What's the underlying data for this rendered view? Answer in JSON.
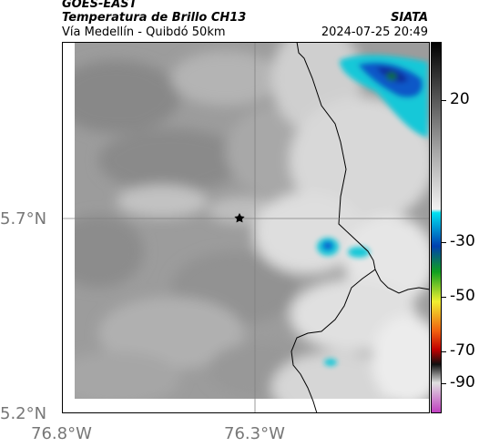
{
  "header": {
    "satellite": "GOES-EAST",
    "product": "Temperatura de Brillo CH13",
    "region": "Vía Medellín - Quibdó 50km",
    "organization": "SIATA",
    "datetime": "2024-07-25 20:49"
  },
  "map": {
    "lat_labels": [
      "5.7°N",
      "5.2°N"
    ],
    "lon_labels": [
      "76.8°W",
      "76.3°W"
    ],
    "marker": "star-marker"
  },
  "colorbar": {
    "tick_labels": [
      "20",
      "-30",
      "-50",
      "-70",
      "-90"
    ],
    "colors": {
      "warm_gray": "#a0a0a0",
      "cold_cyan": "#00d0e0",
      "cold_blue": "#0050c0",
      "green": "#20c020",
      "yellow": "#e0e020",
      "red": "#e02020",
      "black": "#000000",
      "magenta": "#c040c0"
    }
  }
}
